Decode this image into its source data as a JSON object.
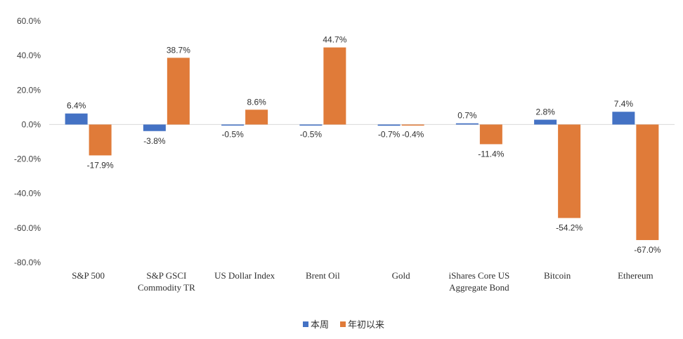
{
  "chart_data": {
    "type": "bar",
    "categories": [
      [
        "S&P 500"
      ],
      [
        "S&P GSCI",
        "Commodity TR"
      ],
      [
        "US Dollar Index"
      ],
      [
        "Brent Oil"
      ],
      [
        "Gold"
      ],
      [
        "iShares Core US",
        "Aggregate Bond"
      ],
      [
        "Bitcoin"
      ],
      [
        "Ethereum"
      ]
    ],
    "series": [
      {
        "name": "本周",
        "color": "#4472C4",
        "values": [
          6.4,
          -3.8,
          -0.5,
          -0.5,
          -0.7,
          0.7,
          2.8,
          7.4
        ],
        "labels": [
          "6.4%",
          "-3.8%",
          "-0.5%",
          "-0.5%",
          "-0.7%",
          "0.7%",
          "2.8%",
          "7.4%"
        ]
      },
      {
        "name": "年初以来",
        "color": "#E07B39",
        "values": [
          -17.9,
          38.7,
          8.6,
          44.7,
          -0.4,
          -11.4,
          -54.2,
          -67.0
        ],
        "labels": [
          "-17.9%",
          "38.7%",
          "8.6%",
          "44.7%",
          "-0.4%",
          "-11.4%",
          "-54.2%",
          "-67.0%"
        ]
      }
    ],
    "ylim": [
      -80,
      60
    ],
    "yticks": [
      60,
      40,
      20,
      0,
      -20,
      -40,
      -60,
      -80
    ],
    "ytick_labels": [
      "60.0%",
      "40.0%",
      "20.0%",
      "0.0%",
      "-20.0%",
      "-40.0%",
      "-60.0%",
      "-80.0%"
    ],
    "grid": false,
    "legend_position": "bottom-center",
    "title": "",
    "xlabel": "",
    "ylabel": ""
  }
}
